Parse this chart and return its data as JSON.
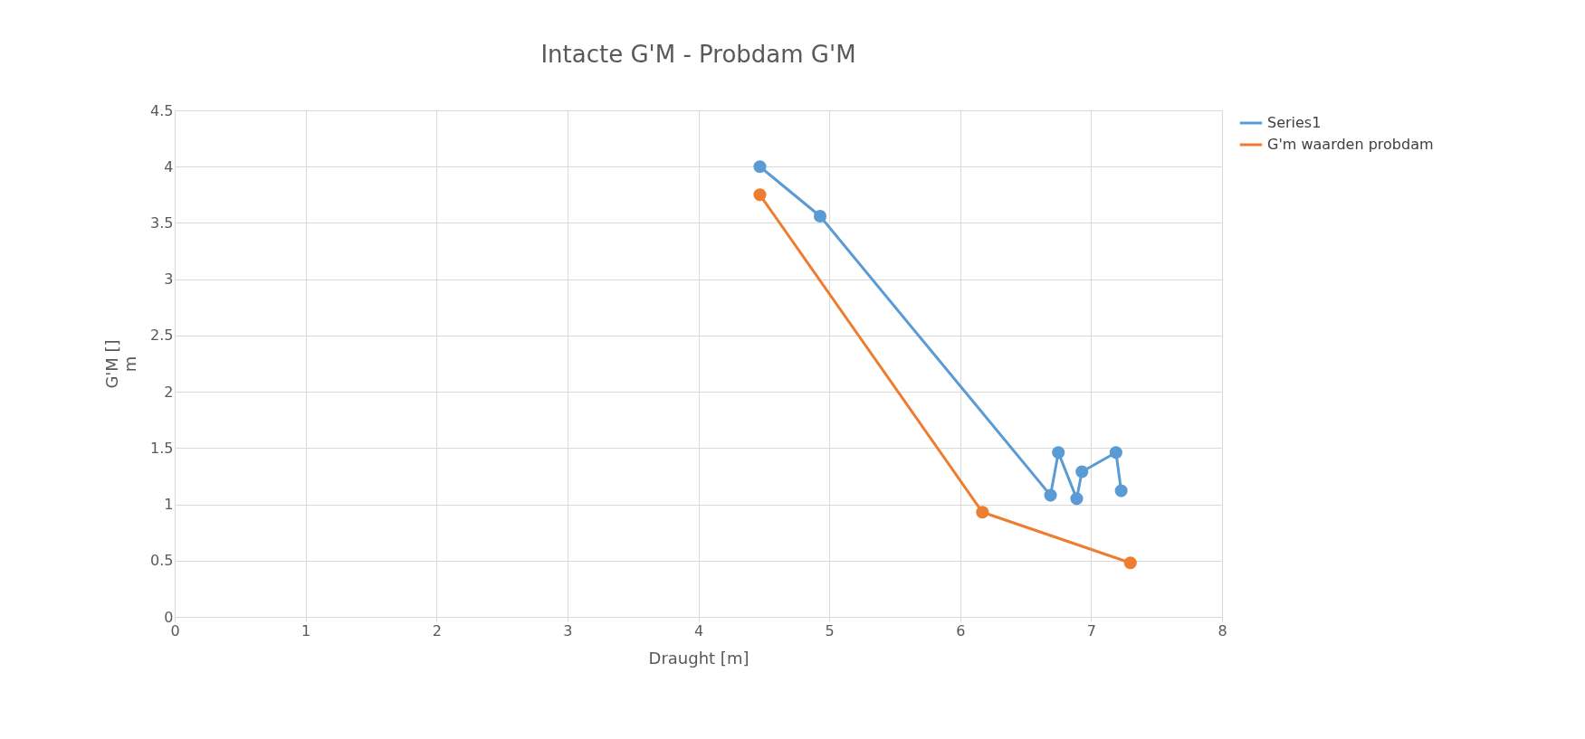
{
  "chart_data": {
    "type": "line",
    "title": "Intacte G'M - Probdam G'M",
    "xlabel": "Draught [m]",
    "ylabel": "G'M []\nm",
    "xlim": [
      0,
      8
    ],
    "xticks": [
      0,
      1,
      2,
      3,
      4,
      5,
      6,
      7,
      8
    ],
    "ylim": [
      0,
      4.5
    ],
    "yticks": [
      0,
      0.5,
      1,
      1.5,
      2,
      2.5,
      3,
      3.5,
      4,
      4.5
    ],
    "grid": true,
    "legend": "right",
    "marker": "circle",
    "line_style": "solid",
    "series": [
      {
        "name": "Series1",
        "color": "#5b9bd5",
        "x": [
          4.47,
          4.93,
          6.69,
          6.75,
          6.89,
          6.93,
          7.19,
          7.23
        ],
        "values": [
          4.0,
          3.56,
          1.08,
          1.46,
          1.05,
          1.29,
          1.46,
          1.12
        ]
      },
      {
        "name": "G'm waarden probdam",
        "color": "#ed7d31",
        "x": [
          4.47,
          6.17,
          7.3
        ],
        "values": [
          3.75,
          0.93,
          0.48
        ]
      }
    ]
  }
}
